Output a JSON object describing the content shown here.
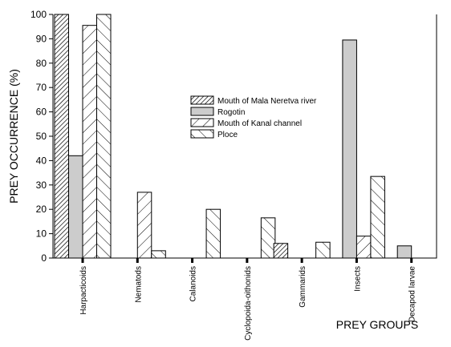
{
  "chart_data": {
    "type": "bar",
    "title": "",
    "xlabel": "PREY GROUPS",
    "ylabel": "PREY OCCURRENCE (%)",
    "ylim": [
      0,
      100
    ],
    "yticks": [
      "0",
      "10",
      "20",
      "30",
      "40",
      "50",
      "60",
      "70",
      "80",
      "90",
      "100"
    ],
    "grid": false,
    "legend_position": "center",
    "categories": [
      "Harpacticoids",
      "Nematods",
      "Calanoids",
      "Cyclopoida-oithonids",
      "Gammarids",
      "Insects",
      "Decapod larvae"
    ],
    "series": [
      {
        "name": "Mouth of Mala Neretva river",
        "pattern": "dense-hatch",
        "fill": "#ffffff",
        "values": [
          100,
          0,
          0,
          0,
          6,
          0,
          0
        ]
      },
      {
        "name": "Rogotin",
        "pattern": "solid",
        "fill": "#cccccc",
        "values": [
          42,
          0,
          0,
          0,
          0,
          89.5,
          5
        ]
      },
      {
        "name": "Mouth of Kanal channel",
        "pattern": "forward-hatch",
        "fill": "#ffffff",
        "values": [
          95.5,
          27,
          0,
          0,
          0,
          9,
          0
        ]
      },
      {
        "name": "Ploce",
        "pattern": "back-hatch",
        "fill": "#ffffff",
        "values": [
          100,
          3,
          20,
          16.5,
          6.5,
          33.5,
          0
        ]
      }
    ]
  }
}
